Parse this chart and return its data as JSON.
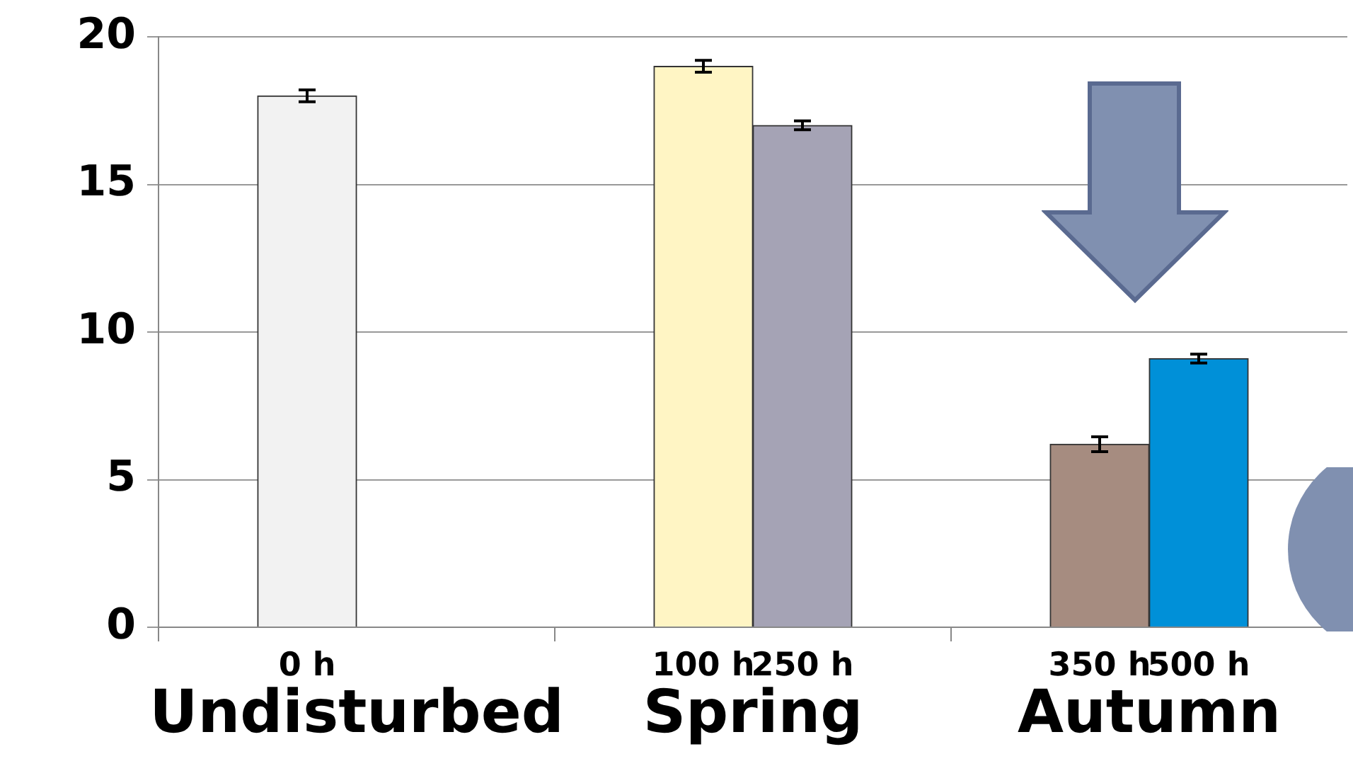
{
  "chart_data": {
    "type": "bar",
    "categories": [
      null,
      "0 h",
      null,
      null,
      null,
      "100 h",
      "250 h",
      null,
      null,
      "350 h",
      "500 h",
      null
    ],
    "values": [
      null,
      18,
      null,
      null,
      null,
      19,
      17,
      null,
      null,
      6.2,
      9.1,
      null
    ],
    "colors": [
      null,
      "#f2f2f2",
      null,
      null,
      null,
      "#fff5c4",
      "#a5a3b5",
      null,
      null,
      "#a68c80",
      "#0090d8",
      null
    ],
    "errors": [
      null,
      0.2,
      null,
      null,
      null,
      0.2,
      0.15,
      null,
      null,
      0.25,
      0.15,
      null
    ],
    "annotations": [
      "Undisturbed",
      "Spring",
      "Autumn"
    ],
    "ylim": [
      0,
      20
    ],
    "yticks": [
      0,
      5,
      10,
      15,
      20
    ],
    "grid": "y",
    "legend": false
  }
}
